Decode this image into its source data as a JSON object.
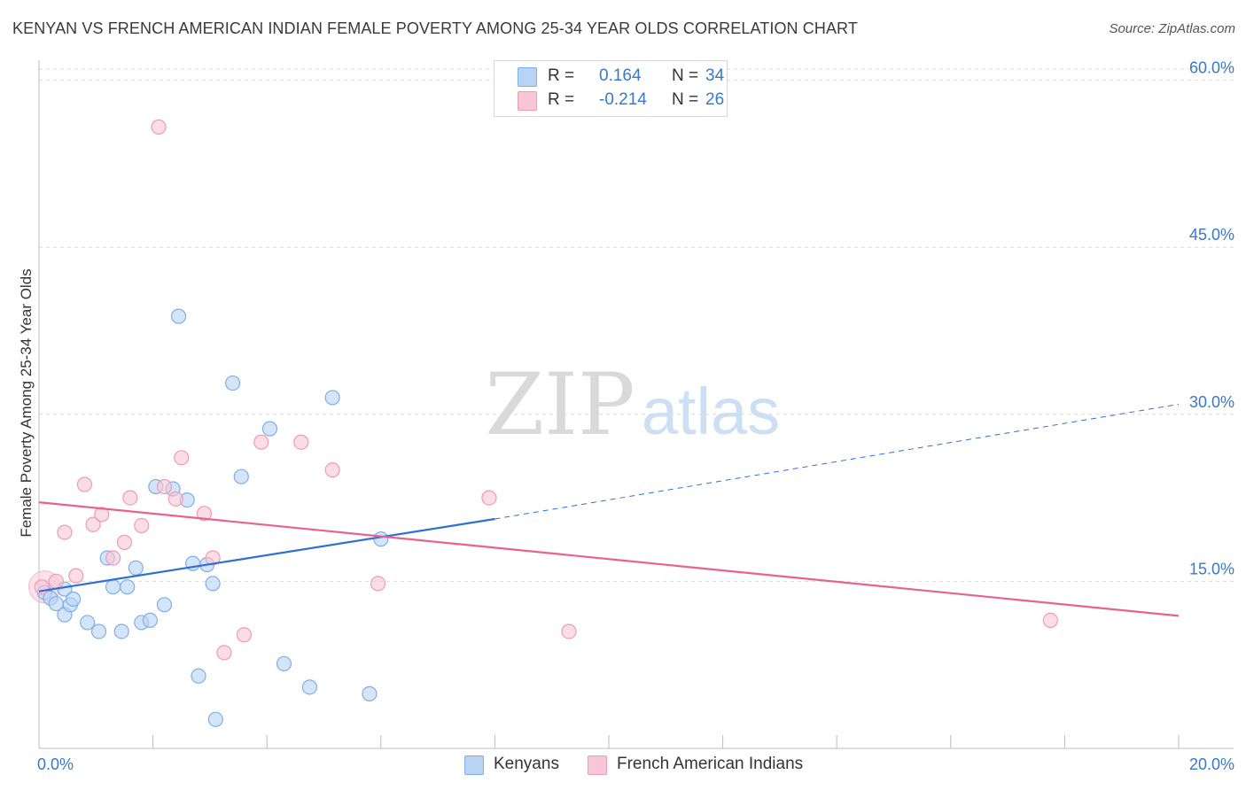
{
  "title": "KENYAN VS FRENCH AMERICAN INDIAN FEMALE POVERTY AMONG 25-34 YEAR OLDS CORRELATION CHART",
  "source": "Source: ZipAtlas.com",
  "watermark": {
    "zip": "ZIP",
    "atlas": "atlas"
  },
  "legend": {
    "r_label": "R =",
    "n_label": "N =",
    "kenyans": {
      "r": "0.164",
      "n": "34"
    },
    "french": {
      "r": "-0.214",
      "n": "26"
    }
  },
  "bottom_legend": {
    "kenyans": "Kenyans",
    "french": "French American Indians"
  },
  "colors": {
    "kenyans_fill": "#b9d3f5",
    "kenyans_stroke": "#7faee6",
    "kenyans_line": "#3070d0",
    "french_fill": "#f8c6d5",
    "french_stroke": "#ef9ab6",
    "french_line": "#e8628f",
    "tick_label": "#3a78c8",
    "grid": "#dcdcdc"
  },
  "chart_data": {
    "type": "scatter",
    "title": "KENYAN VS FRENCH AMERICAN INDIAN FEMALE POVERTY AMONG 25-34 YEAR OLDS CORRELATION CHART",
    "xlabel": "",
    "ylabel": "Female Poverty Among 25-34 Year Olds",
    "xlim": [
      0,
      20
    ],
    "ylim": [
      0,
      61
    ],
    "x_tick_labels": [
      {
        "value": 0,
        "label": "0.0%"
      },
      {
        "value": 20,
        "label": "20.0%"
      }
    ],
    "y_tick_labels": [
      {
        "value": 15,
        "label": "15.0%"
      },
      {
        "value": 30,
        "label": "30.0%"
      },
      {
        "value": 45,
        "label": "45.0%"
      },
      {
        "value": 60,
        "label": "60.0%"
      }
    ],
    "x_minor_ticks": [
      0,
      2,
      4,
      6,
      8,
      10,
      12,
      14,
      16,
      18,
      20
    ],
    "grid": true,
    "series": [
      {
        "name": "Kenyans",
        "points": [
          [
            0.1,
            14.0
          ],
          [
            0.2,
            13.5
          ],
          [
            0.3,
            13.0
          ],
          [
            0.45,
            14.3
          ],
          [
            0.45,
            12.0
          ],
          [
            0.55,
            12.9
          ],
          [
            0.6,
            13.4
          ],
          [
            0.85,
            11.3
          ],
          [
            1.05,
            10.5
          ],
          [
            1.2,
            17.1
          ],
          [
            1.3,
            14.5
          ],
          [
            1.45,
            10.5
          ],
          [
            1.55,
            14.5
          ],
          [
            1.7,
            16.2
          ],
          [
            1.8,
            11.3
          ],
          [
            1.95,
            11.5
          ],
          [
            2.05,
            23.5
          ],
          [
            2.2,
            12.9
          ],
          [
            2.35,
            23.3
          ],
          [
            2.45,
            38.8
          ],
          [
            2.6,
            22.3
          ],
          [
            2.7,
            16.6
          ],
          [
            2.8,
            6.5
          ],
          [
            2.95,
            16.5
          ],
          [
            3.05,
            14.8
          ],
          [
            3.1,
            2.6
          ],
          [
            3.4,
            32.8
          ],
          [
            3.55,
            24.4
          ],
          [
            4.05,
            28.7
          ],
          [
            4.3,
            7.6
          ],
          [
            4.75,
            5.5
          ],
          [
            5.15,
            31.5
          ],
          [
            5.8,
            4.9
          ],
          [
            6.0,
            18.8
          ]
        ],
        "trend": {
          "x0": 0,
          "y0": 14.1,
          "x1": 8.0,
          "y1": 20.6,
          "dashed_to_x": 20,
          "dashed_to_y": 30.9
        }
      },
      {
        "name": "French American Indians",
        "points": [
          [
            0.05,
            14.5
          ],
          [
            0.3,
            15.0
          ],
          [
            0.45,
            19.4
          ],
          [
            0.65,
            15.5
          ],
          [
            0.8,
            23.7
          ],
          [
            0.95,
            20.1
          ],
          [
            1.1,
            21.0
          ],
          [
            1.3,
            17.1
          ],
          [
            1.5,
            18.5
          ],
          [
            1.6,
            22.5
          ],
          [
            1.8,
            20.0
          ],
          [
            2.1,
            55.8
          ],
          [
            2.2,
            23.5
          ],
          [
            2.4,
            22.4
          ],
          [
            2.5,
            26.1
          ],
          [
            2.9,
            21.1
          ],
          [
            3.05,
            17.1
          ],
          [
            3.25,
            8.6
          ],
          [
            3.6,
            10.2
          ],
          [
            3.9,
            27.5
          ],
          [
            4.6,
            27.5
          ],
          [
            5.15,
            25.0
          ],
          [
            5.95,
            14.8
          ],
          [
            7.9,
            22.5
          ],
          [
            9.3,
            10.5
          ],
          [
            17.75,
            11.5
          ]
        ],
        "trend": {
          "x0": 0,
          "y0": 22.1,
          "x1": 20,
          "y1": 11.9
        }
      }
    ]
  }
}
